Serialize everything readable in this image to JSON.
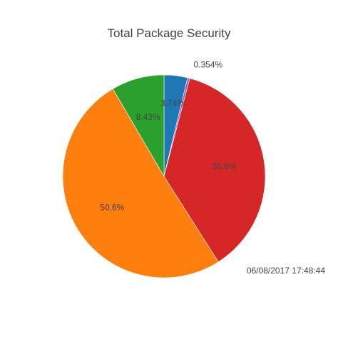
{
  "chart_data": {
    "type": "pie",
    "title": "Total Package Security",
    "slices": [
      {
        "label": "3.74%",
        "value": 3.74,
        "color": "#1f77b4"
      },
      {
        "label": "0.354%",
        "value": 0.354,
        "color": "#9467bd"
      },
      {
        "label": "36.9%",
        "value": 36.9,
        "color": "#d62728"
      },
      {
        "label": "50.6%",
        "value": 50.6,
        "color": "#ff7f0e"
      },
      {
        "label": "8.43%",
        "value": 8.43,
        "color": "#2ca02c"
      }
    ],
    "start_angle": 90,
    "direction": "clockwise",
    "legend": "none"
  },
  "timestamp": "06/08/2017 17:48:44"
}
